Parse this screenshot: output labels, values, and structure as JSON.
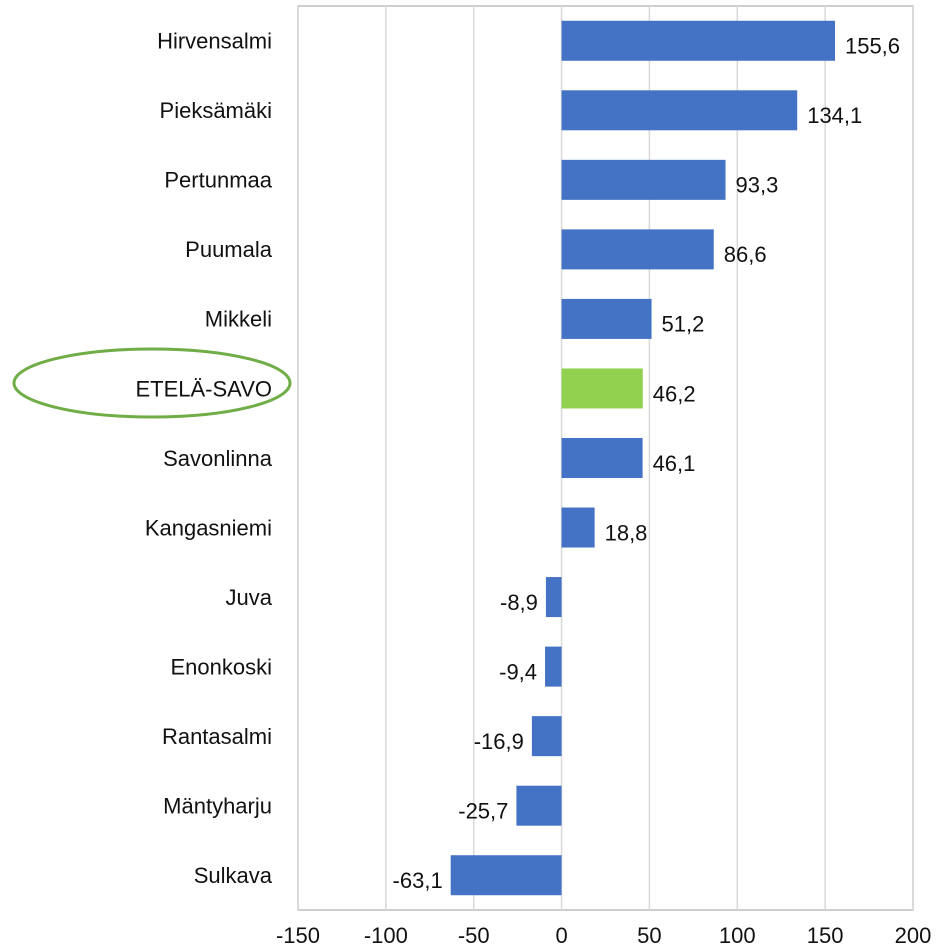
{
  "chart_data": {
    "type": "bar",
    "orientation": "horizontal",
    "categories": [
      "Hirvensalmi",
      "Pieksämäki",
      "Pertunmaa",
      "Puumala",
      "Mikkeli",
      "ETELÄ-SAVO",
      "Savonlinna",
      "Kangasniemi",
      "Juva",
      "Enonkoski",
      "Rantasalmi",
      "Mäntyharju",
      "Sulkava"
    ],
    "values": [
      155.6,
      134.1,
      93.3,
      86.6,
      51.2,
      46.2,
      46.1,
      18.8,
      -8.9,
      -9.4,
      -16.9,
      -25.7,
      -63.1
    ],
    "value_labels": [
      "155,6",
      "134,1",
      "93,3",
      "86,6",
      "51,2",
      "46,2",
      "46,1",
      "18,8",
      "-8,9",
      "-9,4",
      "-16,9",
      "-25,7",
      "-63,1"
    ],
    "colors": [
      "#4472c4",
      "#4472c4",
      "#4472c4",
      "#4472c4",
      "#4472c4",
      "#92d050",
      "#4472c4",
      "#4472c4",
      "#4472c4",
      "#4472c4",
      "#4472c4",
      "#4472c4",
      "#4472c4"
    ],
    "xlim": [
      -150,
      200
    ],
    "xticks": [
      -150,
      -100,
      -50,
      0,
      50,
      100,
      150,
      200
    ],
    "grid": true
  }
}
